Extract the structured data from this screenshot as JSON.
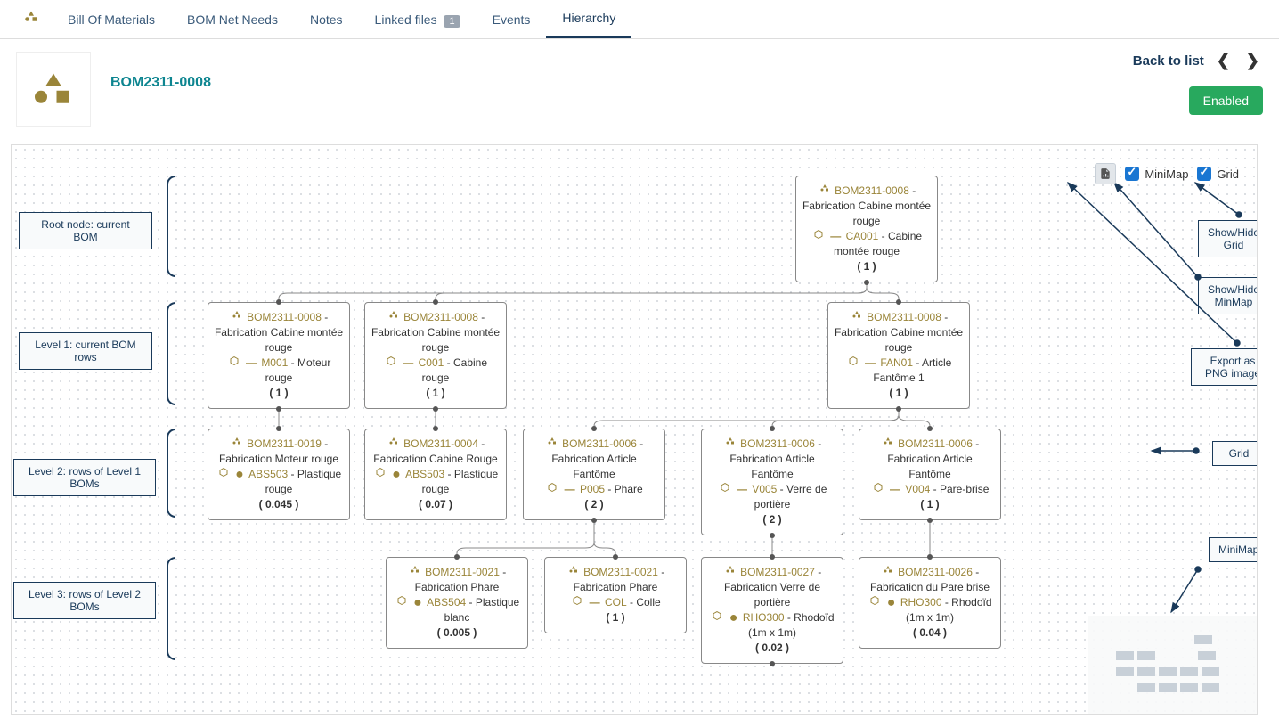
{
  "tabs": {
    "t0": "Bill Of Materials",
    "t1": "BOM Net Needs",
    "t2": "Notes",
    "t3": "Linked files",
    "t3_badge": "1",
    "t4": "Events",
    "t5": "Hierarchy"
  },
  "header": {
    "title": "BOM2311-0008",
    "back": "Back to list",
    "enabled": "Enabled"
  },
  "controls": {
    "minimap": "MiniMap",
    "grid": "Grid"
  },
  "nodes": {
    "root": {
      "bom": "BOM2311-0008",
      "bom_desc": "Fabrication Cabine montée rouge",
      "item": "CA001",
      "item_desc": "Cabine montée rouge",
      "qty": "( 1 )",
      "marker": "dash"
    },
    "l1a": {
      "bom": "BOM2311-0008",
      "bom_desc": "Fabrication Cabine montée rouge",
      "item": "M001",
      "item_desc": "Moteur rouge",
      "qty": "( 1 )",
      "marker": "dash"
    },
    "l1b": {
      "bom": "BOM2311-0008",
      "bom_desc": "Fabrication Cabine montée rouge",
      "item": "C001",
      "item_desc": "Cabine rouge",
      "qty": "( 1 )",
      "marker": "dash"
    },
    "l1c": {
      "bom": "BOM2311-0008",
      "bom_desc": "Fabrication Cabine montée rouge",
      "item": "FAN01",
      "item_desc": "Article Fantôme 1",
      "qty": "( 1 )",
      "marker": "dash"
    },
    "l2a": {
      "bom": "BOM2311-0019",
      "bom_desc": "Fabrication Moteur rouge",
      "item": "ABS503",
      "item_desc": "Plastique rouge",
      "qty": "( 0.045 )",
      "marker": "dot"
    },
    "l2b": {
      "bom": "BOM2311-0004",
      "bom_desc": "Fabrication Cabine Rouge",
      "item": "ABS503",
      "item_desc": "Plastique rouge",
      "qty": "( 0.07 )",
      "marker": "dot"
    },
    "l2c": {
      "bom": "BOM2311-0006",
      "bom_desc": "Fabrication Article Fantôme",
      "item": "P005",
      "item_desc": "Phare",
      "qty": "( 2 )",
      "marker": "dash"
    },
    "l2d": {
      "bom": "BOM2311-0006",
      "bom_desc": "Fabrication Article Fantôme",
      "item": "V005",
      "item_desc": "Verre de portière",
      "qty": "( 2 )",
      "marker": "dash"
    },
    "l2e": {
      "bom": "BOM2311-0006",
      "bom_desc": "Fabrication Article Fantôme",
      "item": "V004",
      "item_desc": "Pare-brise",
      "qty": "( 1 )",
      "marker": "dash"
    },
    "l3a": {
      "bom": "BOM2311-0021",
      "bom_desc": "Fabrication Phare",
      "item": "ABS504",
      "item_desc": "Plastique blanc",
      "qty": "( 0.005 )",
      "marker": "dot"
    },
    "l3b": {
      "bom": "BOM2311-0021",
      "bom_desc": "Fabrication Phare",
      "item": "COL",
      "item_desc": "Colle",
      "qty": "( 1 )",
      "marker": "dash"
    },
    "l3c": {
      "bom": "BOM2311-0027",
      "bom_desc": "Fabrication Verre de portière",
      "item": "RHO300",
      "item_desc": "Rhodoïd (1m x 1m)",
      "qty": "( 0.02 )",
      "marker": "dot"
    },
    "l3d": {
      "bom": "BOM2311-0026",
      "bom_desc": "Fabrication du Pare brise",
      "item": "RHO300",
      "item_desc": "Rhodoïd (1m x 1m)",
      "qty": "( 0.04 )",
      "marker": "dot"
    }
  },
  "annot": {
    "root": "Root node: current BOM",
    "l1": "Level 1: current BOM rows",
    "l2": "Level 2: rows of Level 1 BOMs",
    "l3": "Level 3: rows of Level 2 BOMs",
    "grid_callout": "Show/Hide Grid",
    "minimap_callout": "Show/Hide MinMap",
    "export_callout": "Export as PNG image",
    "grid_label": "Grid",
    "minimap_label": "MiniMap"
  },
  "colors": {
    "accent": "#9a8539",
    "link": "#0d8590",
    "nav": "#1a3a5a",
    "enabled": "#28a95e",
    "annot_border": "#1a3a5a"
  }
}
